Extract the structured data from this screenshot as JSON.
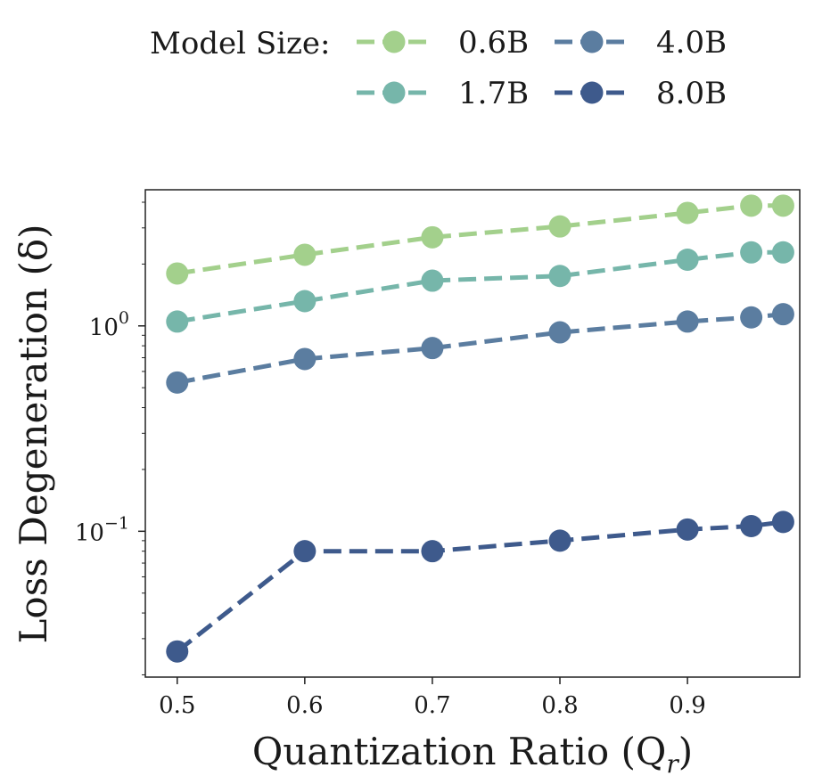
{
  "chart_data": {
    "type": "line",
    "yscale": "log",
    "x": [
      0.5,
      0.6,
      0.7,
      0.8,
      0.9,
      0.95,
      0.975
    ],
    "xlim": [
      0.475,
      0.988
    ],
    "ylim": [
      0.0195,
      4.6
    ],
    "xticks": [
      {
        "value": 0.5,
        "label": "0.5"
      },
      {
        "value": 0.6,
        "label": "0.6"
      },
      {
        "value": 0.7,
        "label": "0.7"
      },
      {
        "value": 0.8,
        "label": "0.8"
      },
      {
        "value": 0.9,
        "label": "0.9"
      }
    ],
    "yticks": [
      {
        "value": 1,
        "base": "10",
        "exp": "0"
      },
      {
        "value": 0.1,
        "base": "10",
        "exp": "−1"
      }
    ],
    "xlabel": "Quantization Ratio (Q",
    "xlabel_sub": "r",
    "xlabel_end": ")",
    "ylabel": "Loss Degeneration (δ)",
    "legend_title": "Model Size:",
    "legend_position": "top",
    "series": [
      {
        "name": "0.6B",
        "color": "#a3d08c",
        "values": [
          1.8,
          2.22,
          2.7,
          3.05,
          3.55,
          3.85,
          3.85
        ]
      },
      {
        "name": "1.7B",
        "color": "#76b6aa",
        "values": [
          1.05,
          1.32,
          1.66,
          1.75,
          2.1,
          2.28,
          2.28
        ]
      },
      {
        "name": "4.0B",
        "color": "#5b7da0",
        "values": [
          0.53,
          0.69,
          0.78,
          0.93,
          1.05,
          1.1,
          1.14
        ]
      },
      {
        "name": "8.0B",
        "color": "#3e5a8c",
        "values": [
          0.026,
          0.08,
          0.08,
          0.09,
          0.102,
          0.106,
          0.111
        ]
      }
    ]
  }
}
